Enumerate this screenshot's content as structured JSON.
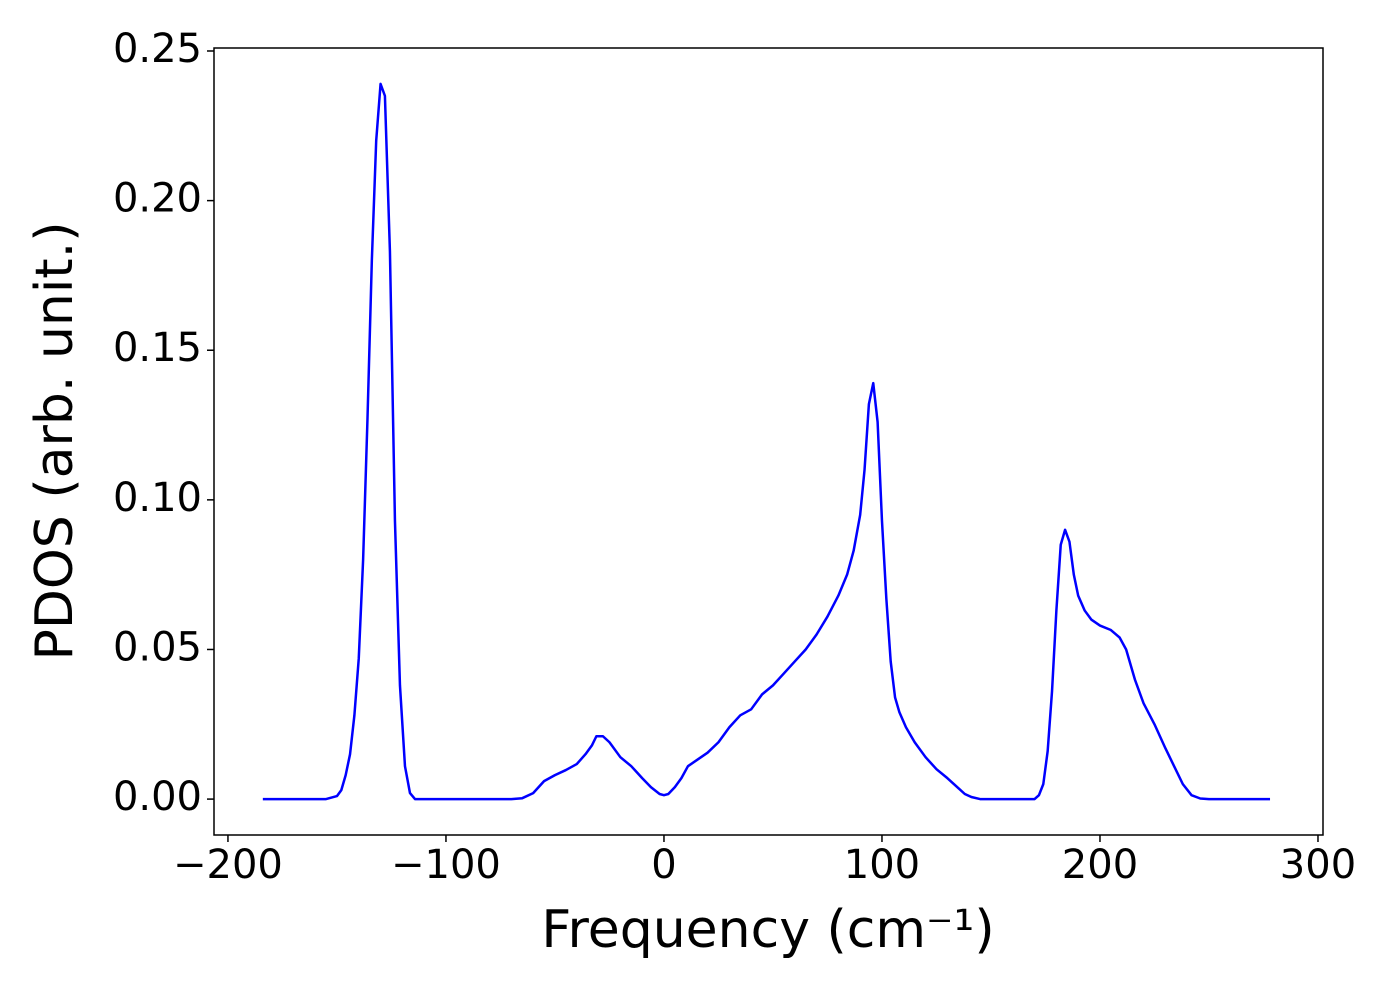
{
  "chart_data": {
    "type": "line",
    "xlabel": "Frequency (cm⁻¹)",
    "ylabel": "PDOS (arb. unit.)",
    "xlim": [
      -206.4,
      302.3
    ],
    "ylim": [
      -0.012,
      0.251
    ],
    "xticks": [
      {
        "value": -200,
        "label": "−200"
      },
      {
        "value": -100,
        "label": "−100"
      },
      0,
      100,
      200,
      300
    ],
    "yticks": [
      {
        "value": 0,
        "label": "0.00"
      },
      {
        "value": 0.05,
        "label": "0.05"
      },
      {
        "value": 0.1,
        "label": "0.10"
      },
      {
        "value": 0.15,
        "label": "0.15"
      },
      {
        "value": 0.2,
        "label": "0.20"
      },
      {
        "value": 0.25,
        "label": "0.25"
      }
    ],
    "grid": false,
    "series": [
      {
        "color": "#0000ff",
        "x": [
          -184,
          -155,
          -150,
          -148,
          -146,
          -144,
          -142,
          -140,
          -138,
          -136,
          -134,
          -132,
          -130,
          -128,
          -125.7,
          -123.4,
          -121.1,
          -118.8,
          -116.5,
          -114.2,
          -110,
          -70,
          -65,
          -60,
          -55,
          -50,
          -45,
          -40,
          -36,
          -33,
          -31,
          -28,
          -25,
          -20,
          -15,
          -10,
          -6,
          -2,
          0,
          2,
          5,
          8,
          11,
          15,
          20,
          25,
          30,
          35,
          40,
          45,
          50,
          55,
          60,
          65,
          70,
          75,
          80,
          84,
          87,
          90,
          92,
          94,
          96,
          98,
          100,
          102,
          104,
          106,
          108,
          111,
          115,
          120,
          125,
          130,
          135,
          138,
          141,
          145,
          170,
          172,
          174,
          176,
          178,
          180,
          182,
          184,
          186,
          188,
          190,
          193,
          196,
          200,
          205,
          209,
          212,
          216,
          220,
          225,
          230,
          234,
          238,
          242,
          246,
          250,
          278
        ],
        "values": [
          0,
          0,
          0.001,
          0.003,
          0.008,
          0.015,
          0.028,
          0.047,
          0.08,
          0.127,
          0.18,
          0.22,
          0.239,
          0.235,
          0.183,
          0.093,
          0.038,
          0.011,
          0.002,
          0,
          0,
          0,
          0.0003,
          0.002,
          0.006,
          0.008,
          0.0097,
          0.0117,
          0.015,
          0.018,
          0.021,
          0.021,
          0.019,
          0.014,
          0.011,
          0.007,
          0.004,
          0.0017,
          0.0013,
          0.0017,
          0.004,
          0.007,
          0.011,
          0.013,
          0.0155,
          0.019,
          0.024,
          0.028,
          0.03,
          0.035,
          0.038,
          0.042,
          0.046,
          0.05,
          0.055,
          0.061,
          0.068,
          0.075,
          0.083,
          0.095,
          0.11,
          0.132,
          0.139,
          0.126,
          0.093,
          0.067,
          0.046,
          0.034,
          0.029,
          0.024,
          0.019,
          0.014,
          0.01,
          0.007,
          0.0037,
          0.0017,
          0.0007,
          0,
          0,
          0.0013,
          0.005,
          0.016,
          0.036,
          0.063,
          0.085,
          0.09,
          0.086,
          0.075,
          0.068,
          0.063,
          0.06,
          0.058,
          0.0565,
          0.054,
          0.05,
          0.04,
          0.032,
          0.025,
          0.017,
          0.011,
          0.005,
          0.0013,
          0.0002,
          0,
          0
        ]
      }
    ]
  }
}
